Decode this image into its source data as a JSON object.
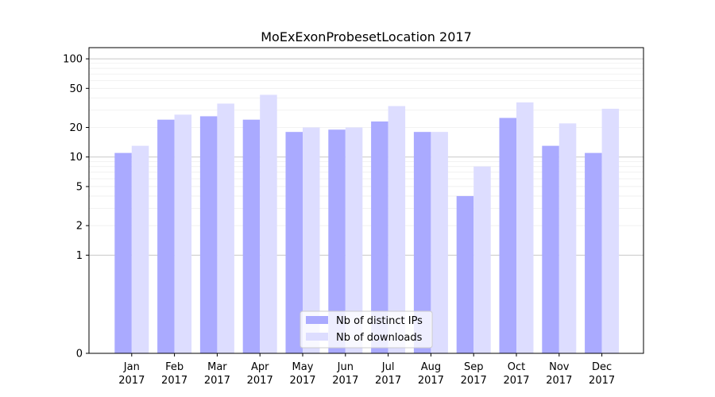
{
  "chart_data": {
    "type": "bar",
    "title": "MoExExonProbesetLocation 2017",
    "xlabel": "",
    "ylabel": "",
    "yscale": "symlog",
    "ylim": [
      0,
      130
    ],
    "yticks": [
      0,
      1,
      2,
      5,
      10,
      20,
      50,
      100
    ],
    "ytick_labels": [
      "0",
      "1",
      "2",
      "5",
      "10",
      "20",
      "50",
      "100"
    ],
    "grid": true,
    "legend_position": "bottom-center",
    "categories": [
      [
        "Jan",
        "2017"
      ],
      [
        "Feb",
        "2017"
      ],
      [
        "Mar",
        "2017"
      ],
      [
        "Apr",
        "2017"
      ],
      [
        "May",
        "2017"
      ],
      [
        "Jun",
        "2017"
      ],
      [
        "Jul",
        "2017"
      ],
      [
        "Aug",
        "2017"
      ],
      [
        "Sep",
        "2017"
      ],
      [
        "Oct",
        "2017"
      ],
      [
        "Nov",
        "2017"
      ],
      [
        "Dec",
        "2017"
      ]
    ],
    "series": [
      {
        "name": "Nb of distinct IPs",
        "color": "#aaaaff",
        "values": [
          11,
          24,
          26,
          24,
          18,
          19,
          23,
          18,
          4,
          25,
          13,
          11
        ]
      },
      {
        "name": "Nb of downloads",
        "color": "#ddddff",
        "values": [
          13,
          27,
          35,
          43,
          20,
          20,
          33,
          18,
          8,
          36,
          22,
          31
        ]
      }
    ]
  }
}
